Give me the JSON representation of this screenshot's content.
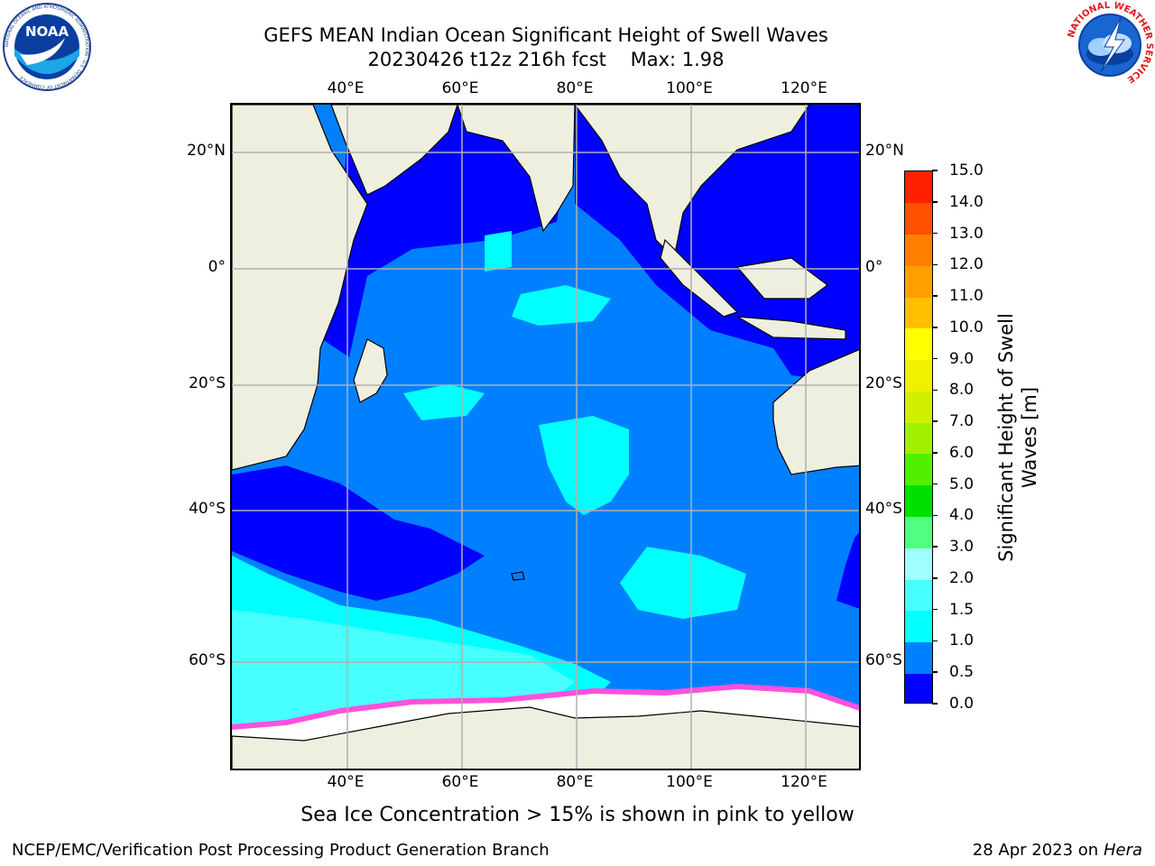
{
  "title": {
    "line1": "GEFS MEAN Indian Ocean Significant Height of Swell Waves",
    "line2": "20230426 t12z 216h fcst    Max: 1.98"
  },
  "map": {
    "lon_labels": [
      "40°E",
      "60°E",
      "80°E",
      "100°E",
      "120°E"
    ],
    "lat_labels": [
      "20°N",
      "0°",
      "20°S",
      "40°S",
      "60°S"
    ],
    "colors": {
      "land": "#efefe0",
      "sea_ice": "#ffffff",
      "ice_edge": "#ff50dc",
      "grid": "#b0b0b0"
    }
  },
  "colorbar": {
    "title_line1": "Significant Height of Swell",
    "title_line2": "Waves [m]",
    "ticks": [
      "0.0",
      "0.5",
      "1.0",
      "1.5",
      "2.0",
      "3.0",
      "4.0",
      "5.0",
      "6.0",
      "7.0",
      "8.0",
      "9.0",
      "10.0",
      "11.0",
      "12.0",
      "13.0",
      "14.0",
      "15.0"
    ],
    "colors": [
      "#0000ff",
      "#0080ff",
      "#00ffff",
      "#48ffff",
      "#a0ffff",
      "#50ff80",
      "#00e000",
      "#50f000",
      "#a0f000",
      "#d0f000",
      "#f0f000",
      "#ffff00",
      "#ffc000",
      "#ffa000",
      "#ff8000",
      "#ff5000",
      "#ff2000"
    ]
  },
  "note": "Sea Ice Concentration > 15% is shown in pink to yellow",
  "footer": {
    "left": "NCEP/EMC/Verification Post Processing Product Generation Branch",
    "right_date": "28 Apr 2023 on ",
    "right_host": "Hera"
  },
  "logos": {
    "noaa_text": "NOAA",
    "noaa_ring": "NATIONAL OCEANIC AND ATMOSPHERIC ADMINISTRATION · U.S. DEPARTMENT OF COMMERCE",
    "nws_ring": "NATIONAL WEATHER SERVICE"
  }
}
